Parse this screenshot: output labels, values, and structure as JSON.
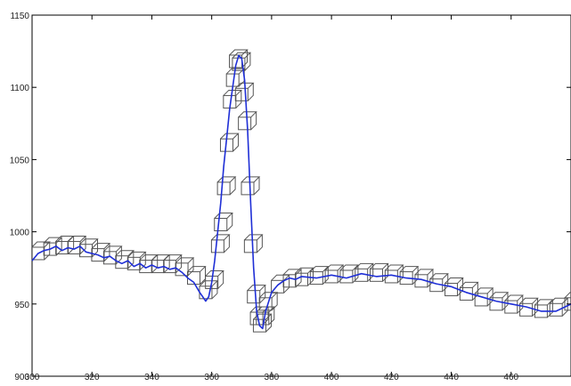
{
  "chart_data": {
    "type": "line",
    "title": "",
    "xlabel": "",
    "ylabel": "",
    "xlim": [
      300,
      480
    ],
    "ylim": [
      900,
      1150
    ],
    "xticks": [
      300,
      320,
      340,
      360,
      380,
      400,
      420,
      440,
      460
    ],
    "xtick_labels": [
      "300",
      "320",
      "340",
      "360",
      "380",
      "400",
      "420",
      "440",
      "460"
    ],
    "yticks": [
      900,
      950,
      1000,
      1050,
      1100,
      1150
    ],
    "ytick_labels": [
      "900",
      "950",
      "1000",
      "1050",
      "1100",
      "1150"
    ],
    "grid": false,
    "series": [
      {
        "color": "#1f2fd6",
        "x": [
          300,
          302,
          304,
          306,
          308,
          310,
          312,
          314,
          316,
          318,
          320,
          322,
          324,
          326,
          328,
          330,
          332,
          334,
          336,
          338,
          340,
          342,
          344,
          346,
          348,
          350,
          352,
          354,
          356,
          357,
          358,
          359,
          360,
          361,
          362,
          363,
          364,
          365,
          366,
          367,
          368,
          369,
          370,
          371,
          372,
          373,
          374,
          375,
          376,
          377,
          378,
          380,
          382,
          384,
          386,
          388,
          390,
          395,
          400,
          405,
          410,
          415,
          420,
          425,
          430,
          435,
          440,
          445,
          450,
          455,
          460,
          465,
          470,
          475,
          480
        ],
        "y": [
          980,
          985,
          987,
          988,
          990,
          987,
          989,
          988,
          990,
          986,
          985,
          984,
          982,
          983,
          980,
          978,
          980,
          976,
          978,
          975,
          977,
          975,
          976,
          974,
          975,
          972,
          968,
          965,
          958,
          955,
          952,
          955,
          965,
          980,
          1000,
          1020,
          1045,
          1065,
          1085,
          1100,
          1115,
          1122,
          1120,
          1105,
          1070,
          1020,
          975,
          945,
          935,
          933,
          945,
          958,
          963,
          966,
          968,
          967,
          969,
          968,
          970,
          968,
          971,
          969,
          970,
          968,
          967,
          964,
          962,
          958,
          955,
          952,
          950,
          948,
          945,
          945,
          950
        ]
      }
    ],
    "boxes": {
      "color": "#555555",
      "centers_x": [
        302,
        306,
        310,
        314,
        318,
        322,
        326,
        330,
        334,
        338,
        342,
        346,
        350,
        354,
        358,
        360,
        362,
        363,
        364,
        365,
        366,
        367,
        368,
        369,
        370,
        371,
        372,
        373,
        374,
        375,
        376,
        377,
        378,
        382,
        386,
        390,
        395,
        400,
        405,
        410,
        415,
        420,
        425,
        430,
        435,
        440,
        445,
        450,
        455,
        460,
        465,
        470,
        475,
        480
      ],
      "centers_y": [
        985,
        988,
        989,
        989,
        987,
        984,
        982,
        979,
        978,
        976,
        976,
        976,
        974,
        968,
        958,
        965,
        990,
        1005,
        1030,
        1060,
        1090,
        1105,
        1118,
        1116,
        1095,
        1075,
        1030,
        990,
        955,
        940,
        935,
        940,
        950,
        962,
        966,
        967,
        968,
        969,
        969,
        970,
        970,
        969,
        968,
        966,
        963,
        960,
        957,
        953,
        950,
        948,
        946,
        945,
        946,
        950
      ]
    }
  }
}
